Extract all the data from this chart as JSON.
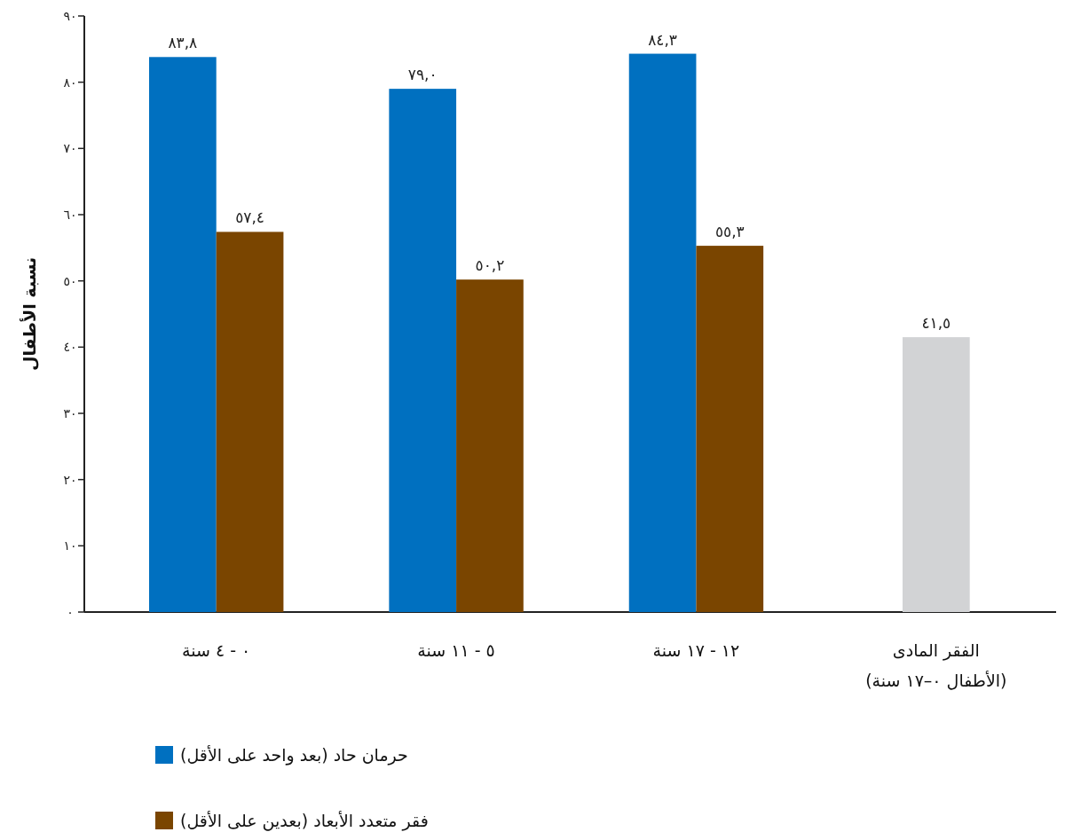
{
  "chart_data": {
    "type": "bar",
    "ylabel": "نسبة الأطفال",
    "categories": [
      "٠ - ٤ سنة",
      "٥ - ١١ سنة",
      "١٢ - ١٧ سنة",
      "الفقر المادى (الأطفال ٠–١٧ سنة)"
    ],
    "series": [
      {
        "name": "حرمان حاد (بعد واحد على الأقل)",
        "color": "#0070c0",
        "values": [
          83.8,
          79.0,
          84.3,
          null
        ],
        "value_labels": [
          "٨٣,٨",
          "٧٩,٠",
          "٨٤,٣",
          null
        ]
      },
      {
        "name": "فقر متعدد الأبعاد (بعدين على الأقل)",
        "color": "#7a4500",
        "values": [
          57.4,
          50.2,
          55.3,
          null
        ],
        "value_labels": [
          "٥٧,٤",
          "٥٠,٢",
          "٥٥,٣",
          null
        ]
      },
      {
        "color": "#d2d3d5",
        "values": [
          null,
          null,
          null,
          41.5
        ],
        "value_labels": [
          null,
          null,
          null,
          "٤١,٥"
        ]
      }
    ],
    "ylim": [
      0,
      90
    ],
    "yticks": [
      {
        "value": 0,
        "label": "٠"
      },
      {
        "value": 10,
        "label": "١٠"
      },
      {
        "value": 20,
        "label": "٢٠"
      },
      {
        "value": 30,
        "label": "٣٠"
      },
      {
        "value": 40,
        "label": "٤٠"
      },
      {
        "value": 50,
        "label": "٥٠"
      },
      {
        "value": 60,
        "label": "٦٠"
      },
      {
        "value": 70,
        "label": "٧٠"
      },
      {
        "value": 80,
        "label": "٨٠"
      },
      {
        "value": 90,
        "label": "٩٠"
      }
    ],
    "legend": "bottom",
    "grid": false
  }
}
